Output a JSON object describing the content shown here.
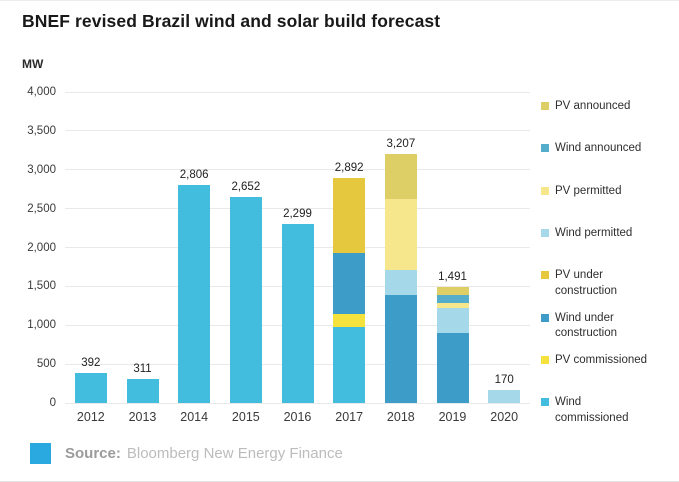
{
  "title": "BNEF revised Brazil wind and solar build forecast",
  "source": {
    "label": "Source:",
    "text": "Bloomberg New Energy Finance",
    "swatch_color": "#2aa9e0"
  },
  "chart_data": {
    "type": "bar",
    "stacked": true,
    "title": "BNEF revised Brazil wind and solar build forecast",
    "xlabel": "",
    "ylabel": "MW",
    "ylim": [
      0,
      4000
    ],
    "ytick_interval": 500,
    "yticks": [
      "0",
      "500",
      "1,000",
      "1,500",
      "2,000",
      "2,500",
      "3,000",
      "3,500",
      "4,000"
    ],
    "grid": true,
    "legend_position": "right",
    "categories": [
      "2012",
      "2013",
      "2014",
      "2015",
      "2016",
      "2017",
      "2018",
      "2019",
      "2020"
    ],
    "totals": [
      392,
      311,
      2806,
      2652,
      2299,
      2892,
      3207,
      1491,
      170
    ],
    "total_labels": [
      "392",
      "311",
      "2,806",
      "2,652",
      "2,299",
      "2,892",
      "3,207",
      "1,491",
      "170"
    ],
    "series": [
      {
        "name": "Wind commissioned",
        "color": "#43bddd",
        "values": [
          392,
          311,
          2806,
          2652,
          2299,
          980,
          0,
          0,
          0
        ]
      },
      {
        "name": "PV commissioned",
        "color": "#f5e23c",
        "values": [
          0,
          0,
          0,
          0,
          0,
          170,
          0,
          0,
          0
        ]
      },
      {
        "name": "Wind under construction",
        "color": "#3e9cc9",
        "values": [
          0,
          0,
          0,
          0,
          0,
          780,
          1390,
          900,
          0
        ]
      },
      {
        "name": "PV under construction",
        "color": "#e6c83e",
        "values": [
          0,
          0,
          0,
          0,
          0,
          962,
          0,
          0,
          0
        ]
      },
      {
        "name": "Wind permitted",
        "color": "#a5d8e9",
        "values": [
          0,
          0,
          0,
          0,
          0,
          0,
          325,
          325,
          170
        ]
      },
      {
        "name": "PV permitted",
        "color": "#f7e78c",
        "values": [
          0,
          0,
          0,
          0,
          0,
          0,
          909,
          66,
          0
        ]
      },
      {
        "name": "Wind announced",
        "color": "#54adca",
        "values": [
          0,
          0,
          0,
          0,
          0,
          0,
          0,
          100,
          0
        ]
      },
      {
        "name": "PV announced",
        "color": "#ddce66",
        "values": [
          0,
          0,
          0,
          0,
          0,
          0,
          583,
          100,
          0
        ]
      }
    ],
    "legend": [
      {
        "label": "PV announced",
        "color": "#ddce66"
      },
      {
        "label": "Wind announced",
        "color": "#54adca"
      },
      {
        "label": "PV permitted",
        "color": "#f7e78c"
      },
      {
        "label": "Wind permitted",
        "color": "#a5d8e9"
      },
      {
        "label": "PV under\nconstruction",
        "color": "#e6c83e"
      },
      {
        "label": "Wind under\nconstruction",
        "color": "#3e9cc9"
      },
      {
        "label": "PV commissioned",
        "color": "#f5e23c"
      },
      {
        "label": "Wind\ncommissioned",
        "color": "#43bddd"
      }
    ]
  }
}
